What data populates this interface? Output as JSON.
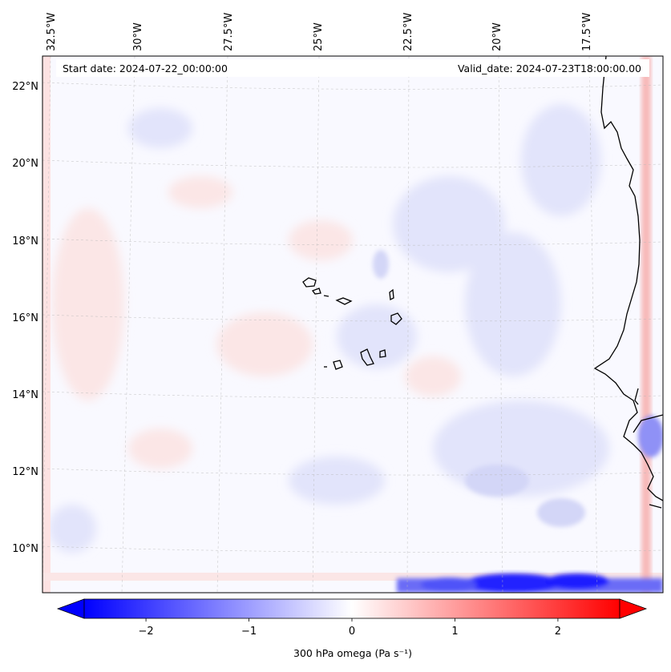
{
  "map": {
    "start_date": "Start date: 2024-07-22_00:00:00",
    "valid_date": "Valid_date: 2024-07-23T18:00:00.00",
    "lon_labels": [
      "32.5°W",
      "30°W",
      "27.5°W",
      "25°W",
      "22.5°W",
      "20°W",
      "17.5°W"
    ],
    "lat_labels": [
      "22°N",
      "20°N",
      "18°N",
      "16°N",
      "14°N",
      "12°N",
      "10°N"
    ],
    "variable": "300 hPa omega",
    "units": "Pa s⁻¹"
  },
  "colorbar": {
    "label": "300 hPa omega (Pa s⁻¹)",
    "ticks": [
      "−2",
      "−1",
      "0",
      "1",
      "2"
    ],
    "tick_values": [
      -2,
      -1,
      0,
      1,
      2
    ],
    "range": [
      -2.6,
      2.6
    ],
    "colors": {
      "min": "#0000ff",
      "mid": "#ffffff",
      "max": "#ff0000"
    }
  }
}
